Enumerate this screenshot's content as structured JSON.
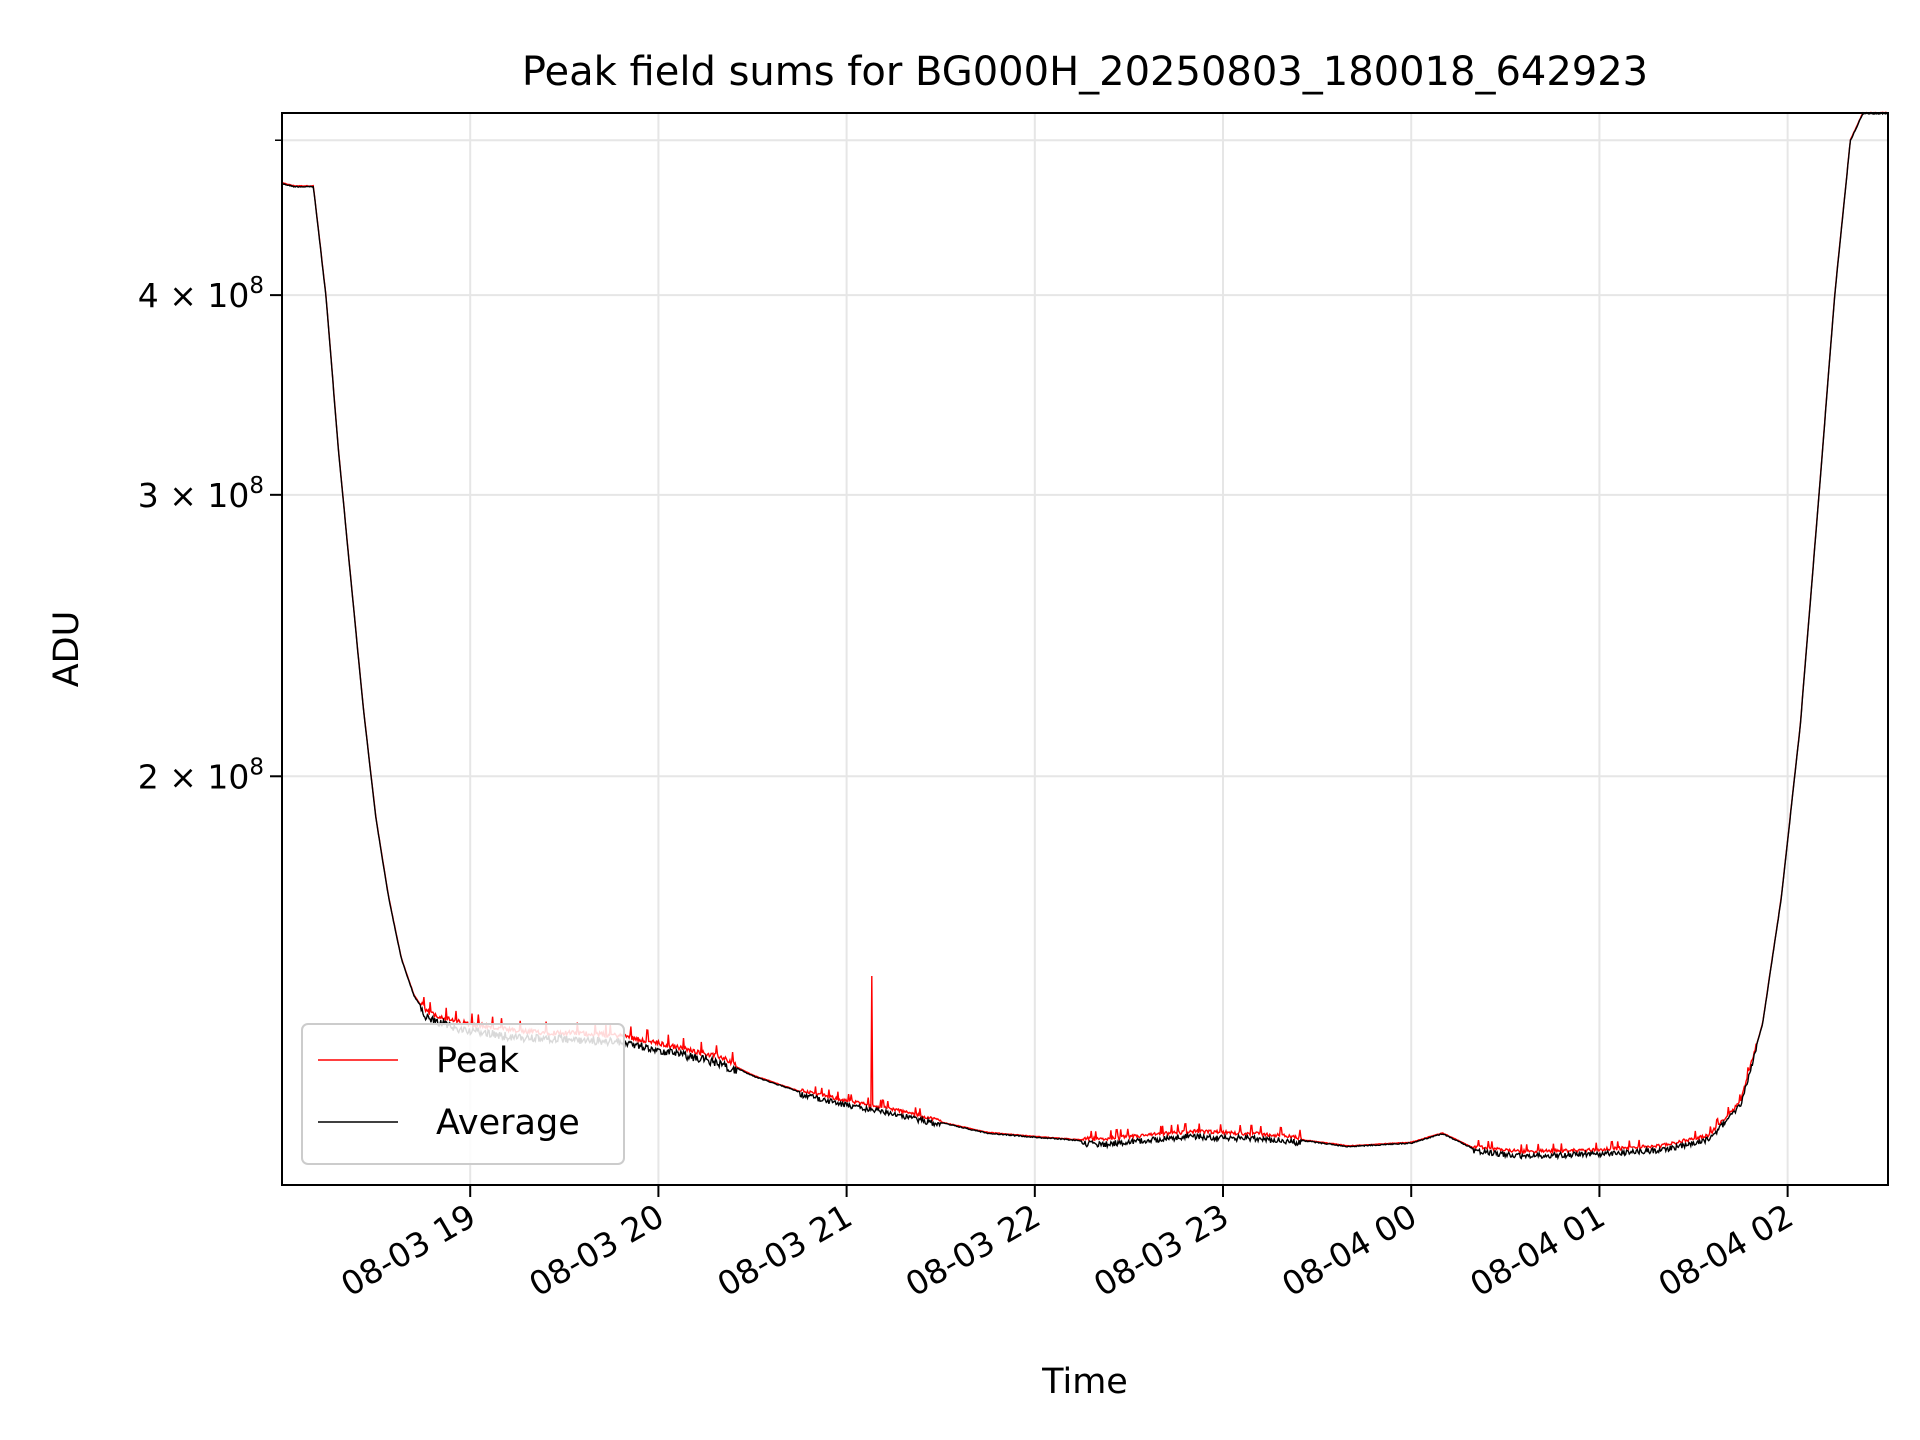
{
  "chart_data": {
    "type": "line",
    "title": "Peak field sums for BG000H_20250803_180018_642923",
    "xlabel": "Time",
    "ylabel": "ADU",
    "x_range": [
      "2025-08-03T18:00:00",
      "2025-08-04T02:32:00"
    ],
    "xticks": [
      {
        "t": "2025-08-03T19:00",
        "label": "08-03 19"
      },
      {
        "t": "2025-08-03T20:00",
        "label": "08-03 20"
      },
      {
        "t": "2025-08-03T21:00",
        "label": "08-03 21"
      },
      {
        "t": "2025-08-03T22:00",
        "label": "08-03 22"
      },
      {
        "t": "2025-08-03T23:00",
        "label": "08-03 23"
      },
      {
        "t": "2025-08-04T00:00",
        "label": "08-04 00"
      },
      {
        "t": "2025-08-04T01:00",
        "label": "08-04 01"
      },
      {
        "t": "2025-08-04T02:00",
        "label": "08-04 02"
      }
    ],
    "y_scale": "log",
    "ylim": [
      111000000,
      520000000
    ],
    "yticks": [
      {
        "value": 200000000,
        "mantissa": "2",
        "base": "10",
        "exp": "8"
      },
      {
        "value": 300000000,
        "mantissa": "3",
        "base": "10",
        "exp": "8"
      },
      {
        "value": 400000000,
        "mantissa": "4",
        "base": "10",
        "exp": "8"
      }
    ],
    "grid": true,
    "legend": {
      "placement": "lower-left"
    },
    "colors": {
      "peak": "#ff0000",
      "average": "#000000",
      "grid": "#e6e6e6"
    },
    "series": [
      {
        "name": "Average",
        "color": "#000000",
        "points": [
          [
            "2025-08-03T18:00",
            470000000
          ],
          [
            "2025-08-03T18:04",
            468000000
          ],
          [
            "2025-08-03T18:10",
            468000000
          ],
          [
            "2025-08-03T18:14",
            400000000
          ],
          [
            "2025-08-03T18:18",
            320000000
          ],
          [
            "2025-08-03T18:22",
            265000000
          ],
          [
            "2025-08-03T18:26",
            220000000
          ],
          [
            "2025-08-03T18:30",
            188000000
          ],
          [
            "2025-08-03T18:34",
            168000000
          ],
          [
            "2025-08-03T18:38",
            154000000
          ],
          [
            "2025-08-03T18:42",
            146000000
          ],
          [
            "2025-08-03T18:46",
            142000000
          ],
          [
            "2025-08-03T18:55",
            140000000
          ],
          [
            "2025-08-03T19:15",
            138000000
          ],
          [
            "2025-08-03T19:40",
            137500000
          ],
          [
            "2025-08-03T19:50",
            137000000
          ],
          [
            "2025-08-03T20:05",
            135000000
          ],
          [
            "2025-08-03T20:20",
            133000000
          ],
          [
            "2025-08-03T20:30",
            130000000
          ],
          [
            "2025-08-03T20:45",
            127000000
          ],
          [
            "2025-08-03T21:00",
            125000000
          ],
          [
            "2025-08-03T21:15",
            123500000
          ],
          [
            "2025-08-03T21:30",
            121500000
          ],
          [
            "2025-08-03T21:45",
            119700000
          ],
          [
            "2025-08-03T22:00",
            119000000
          ],
          [
            "2025-08-03T22:20",
            118200000
          ],
          [
            "2025-08-03T22:50",
            119600000
          ],
          [
            "2025-08-03T23:10",
            119200000
          ],
          [
            "2025-08-03T23:20",
            118800000
          ],
          [
            "2025-08-03T23:40",
            117400000
          ],
          [
            "2025-08-04T00:00",
            118000000
          ],
          [
            "2025-08-04T00:10",
            119600000
          ],
          [
            "2025-08-04T00:20",
            117000000
          ],
          [
            "2025-08-04T00:35",
            116200000
          ],
          [
            "2025-08-04T01:00",
            116500000
          ],
          [
            "2025-08-04T01:20",
            117200000
          ],
          [
            "2025-08-04T01:35",
            119000000
          ],
          [
            "2025-08-04T01:45",
            125000000
          ],
          [
            "2025-08-04T01:52",
            140000000
          ],
          [
            "2025-08-04T01:58",
            168000000
          ],
          [
            "2025-08-04T02:04",
            215000000
          ],
          [
            "2025-08-04T02:10",
            300000000
          ],
          [
            "2025-08-04T02:15",
            400000000
          ],
          [
            "2025-08-04T02:20",
            500000000
          ],
          [
            "2025-08-04T02:24",
            520000000
          ],
          [
            "2025-08-04T02:32",
            520000000
          ]
        ]
      },
      {
        "name": "Peak",
        "color": "#ff0000",
        "note_spike": {
          "t": "2025-08-03T21:08",
          "value": 150000000
        }
      }
    ]
  }
}
